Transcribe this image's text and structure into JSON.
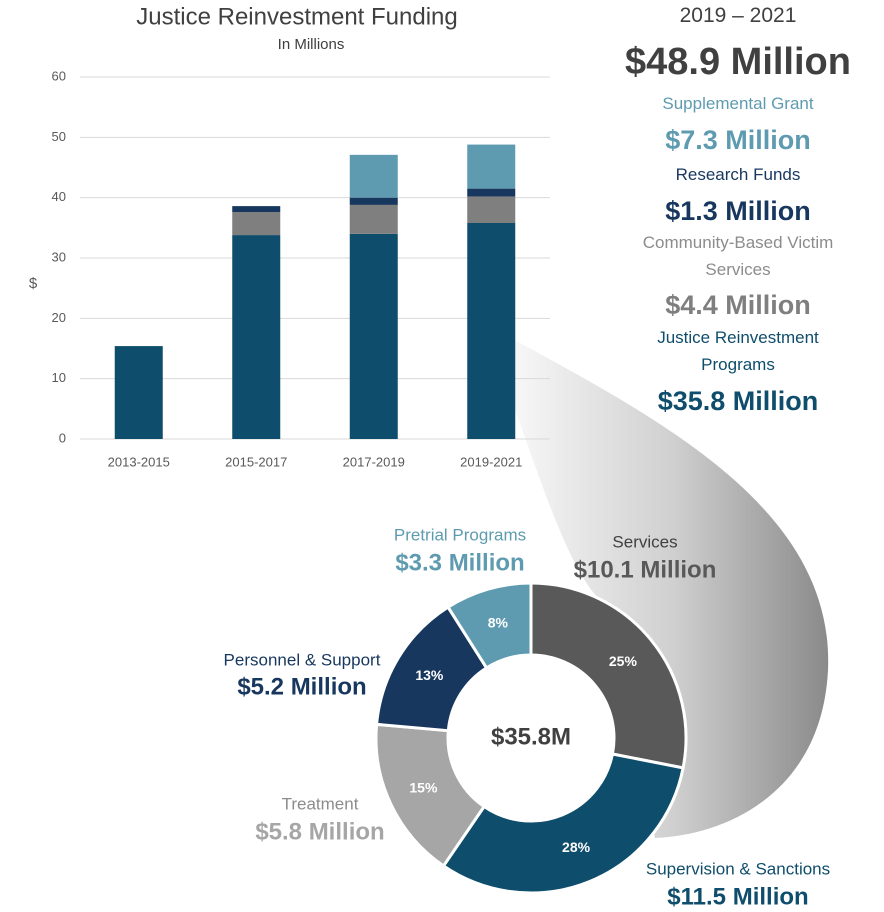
{
  "chart_data": [
    {
      "type": "bar",
      "stacked": true,
      "title": "Justice Reinvestment Funding",
      "subtitle": "In Millions",
      "y_label": "$",
      "categories": [
        "2013-2015",
        "2015-2017",
        "2017-2019",
        "2019-2021"
      ],
      "series": [
        {
          "name": "Justice Reinvestment Programs",
          "color": "#0e4d6b",
          "values": [
            15.4,
            33.8,
            34.0,
            35.8
          ],
          "value_labels": [
            null,
            null,
            null,
            "$35.8 Million"
          ]
        },
        {
          "name": "Community-Based Victim Services",
          "color": "#7f7f7f",
          "values": [
            null,
            3.8,
            4.8,
            4.4
          ],
          "value_labels": [
            null,
            null,
            null,
            "$4.4 Million"
          ]
        },
        {
          "name": "Research Funds",
          "color": "#17375e",
          "values": [
            null,
            1.0,
            1.2,
            1.3
          ],
          "value_labels": [
            null,
            null,
            null,
            "$1.3 Million"
          ]
        },
        {
          "name": "Supplemental Grant",
          "color": "#5e9bb0",
          "values": [
            null,
            null,
            7.1,
            7.3
          ],
          "value_labels": [
            null,
            null,
            null,
            "$7.3 Million"
          ]
        }
      ],
      "ylim": [
        0,
        60
      ],
      "yticks": [
        0,
        10,
        20,
        30,
        40,
        50,
        60
      ],
      "grid": true,
      "summary_heading": "2019 – 2021",
      "summary_total": "$48.9 Million"
    },
    {
      "type": "donut",
      "center_label": "$35.8M",
      "categories": [
        "Services",
        "Supervision & Sanctions",
        "Treatment",
        "Personnel & Support",
        "Pretrial Programs"
      ],
      "values": [
        25,
        28,
        15,
        13,
        8
      ],
      "value_labels": [
        "25%",
        "28%",
        "15%",
        "13%",
        "8%"
      ],
      "amount_labels": [
        "$10.1 Million",
        "$11.5 Million",
        "$5.8 Million",
        "$5.2 Million",
        "$3.3 Million"
      ],
      "colors": [
        "#595959",
        "#0e4d6b",
        "#a6a6a6",
        "#17375e",
        "#5e9bb0"
      ]
    }
  ]
}
